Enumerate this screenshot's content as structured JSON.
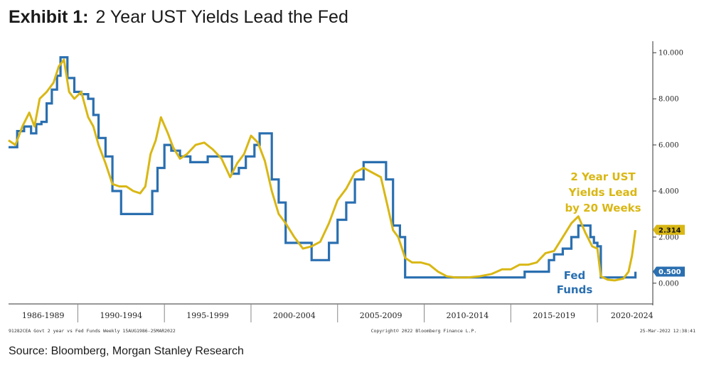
{
  "header": {
    "exhibit": "Exhibit 1:",
    "title": "2 Year UST Yields Lead the Fed"
  },
  "source": "Source: Bloomberg, Morgan Stanley Research",
  "colors": {
    "ust": "#d9b714",
    "fed": "#2a6fb0",
    "axis": "#333333"
  },
  "chart_data": {
    "type": "line",
    "ylim": [
      -0.9,
      10.5
    ],
    "xlim": [
      1986,
      2023.2
    ],
    "yticks": [
      0,
      2,
      4,
      6,
      8,
      10
    ],
    "ytick_labels": [
      "0.000",
      "2.000",
      "4.000",
      "6.000",
      "8.000",
      "10.000"
    ],
    "xtick_labels": [
      "1986-1989",
      "1990-1994",
      "1995-1999",
      "2000-2004",
      "2005-2009",
      "2010-2014",
      "2015-2019",
      "2020-2024"
    ],
    "xtick_label_x": [
      1988,
      1992.5,
      1997.5,
      2002.5,
      2007.5,
      2012.5,
      2017.5,
      2022
    ],
    "xtick_dividers": [
      1990,
      1995,
      2000,
      2005,
      2010,
      2015,
      2020
    ],
    "annotations": {
      "ust": [
        "2 Year UST",
        "Yields Lead",
        "by 20 Weeks"
      ],
      "fed": [
        "Fed",
        "Funds"
      ]
    },
    "last_values": {
      "ust": "2.314",
      "fed": "0.500"
    },
    "footer_left": "91282CEA Govt 2 year vs Fed Funds  Weekly 15AUG1986-25MAR2022",
    "footer_center": "Copyright© 2022 Bloomberg Finance L.P.",
    "footer_right": "25-Mar-2022 12:38:41",
    "series": [
      {
        "name": "2 Year UST",
        "x": [
          1986.0,
          1986.4,
          1986.8,
          1987.2,
          1987.5,
          1987.8,
          1988.2,
          1988.6,
          1988.9,
          1989.2,
          1989.5,
          1989.8,
          1990.2,
          1990.6,
          1990.9,
          1991.2,
          1991.6,
          1992.0,
          1992.4,
          1992.8,
          1993.2,
          1993.6,
          1993.9,
          1994.2,
          1994.5,
          1994.8,
          1995.2,
          1995.5,
          1995.9,
          1996.3,
          1996.8,
          1997.3,
          1997.8,
          1998.3,
          1998.8,
          1999.2,
          1999.6,
          2000.0,
          2000.4,
          2000.8,
          2001.2,
          2001.6,
          2002.0,
          2002.5,
          2003.0,
          2003.5,
          2004.0,
          2004.5,
          2005.0,
          2005.5,
          2006.0,
          2006.5,
          2007.0,
          2007.5,
          2007.9,
          2008.2,
          2008.5,
          2008.9,
          2009.3,
          2009.8,
          2010.3,
          2010.8,
          2011.3,
          2011.8,
          2012.5,
          2013.2,
          2013.9,
          2014.5,
          2015.0,
          2015.5,
          2016.0,
          2016.5,
          2017.0,
          2017.5,
          2018.0,
          2018.5,
          2018.9,
          2019.3,
          2019.7,
          2020.0,
          2020.2,
          2020.6,
          2021.0,
          2021.5,
          2021.8,
          2022.0,
          2022.2
        ],
        "y": [
          6.2,
          6.0,
          6.8,
          7.4,
          6.8,
          8.0,
          8.3,
          8.7,
          9.4,
          9.7,
          8.3,
          8.0,
          8.3,
          7.2,
          6.8,
          6.0,
          5.2,
          4.3,
          4.2,
          4.2,
          4.0,
          3.9,
          4.2,
          5.6,
          6.2,
          7.2,
          6.5,
          5.9,
          5.4,
          5.6,
          6.0,
          6.1,
          5.8,
          5.4,
          4.6,
          5.2,
          5.6,
          6.4,
          6.1,
          5.3,
          4.0,
          3.0,
          2.6,
          2.0,
          1.5,
          1.6,
          1.8,
          2.6,
          3.6,
          4.1,
          4.8,
          5.0,
          4.8,
          4.6,
          3.3,
          2.3,
          2.0,
          1.1,
          0.9,
          0.9,
          0.8,
          0.5,
          0.3,
          0.25,
          0.25,
          0.3,
          0.4,
          0.6,
          0.6,
          0.8,
          0.8,
          0.9,
          1.3,
          1.4,
          2.0,
          2.6,
          2.9,
          2.2,
          1.6,
          1.5,
          0.3,
          0.15,
          0.12,
          0.2,
          0.5,
          1.2,
          2.3
        ]
      },
      {
        "name": "Fed Funds",
        "x": [
          1986.0,
          1986.5,
          1986.9,
          1987.3,
          1987.6,
          1987.9,
          1988.2,
          1988.5,
          1988.8,
          1989.0,
          1989.4,
          1989.8,
          1990.2,
          1990.6,
          1990.9,
          1991.2,
          1991.6,
          1992.0,
          1992.5,
          1993.5,
          1994.0,
          1994.3,
          1994.6,
          1995.0,
          1995.4,
          1995.9,
          1996.5,
          1997.5,
          1998.5,
          1998.9,
          1999.3,
          1999.7,
          2000.2,
          2000.5,
          2000.8,
          2001.2,
          2001.6,
          2002.0,
          2002.8,
          2003.5,
          2004.0,
          2004.5,
          2005.0,
          2005.5,
          2006.0,
          2006.5,
          2007.0,
          2007.5,
          2007.8,
          2008.2,
          2008.6,
          2008.9,
          2009.5,
          2010.5,
          2012.5,
          2014.5,
          2015.8,
          2016.5,
          2017.2,
          2017.5,
          2018.0,
          2018.5,
          2018.9,
          2019.4,
          2019.6,
          2019.8,
          2020.0,
          2020.2,
          2021.0,
          2022.0,
          2022.2
        ],
        "y": [
          5.9,
          6.6,
          6.8,
          6.5,
          6.9,
          7.0,
          7.8,
          8.4,
          9.0,
          9.8,
          8.9,
          8.3,
          8.2,
          8.0,
          7.3,
          6.3,
          5.5,
          4.0,
          3.0,
          3.0,
          3.0,
          4.0,
          5.0,
          6.0,
          5.75,
          5.5,
          5.25,
          5.5,
          5.5,
          4.75,
          5.0,
          5.5,
          6.0,
          6.5,
          6.5,
          4.5,
          3.5,
          1.75,
          1.75,
          1.0,
          1.0,
          1.75,
          2.75,
          3.5,
          4.5,
          5.25,
          5.25,
          5.25,
          4.5,
          2.5,
          2.0,
          0.25,
          0.25,
          0.25,
          0.25,
          0.25,
          0.5,
          0.5,
          1.0,
          1.25,
          1.5,
          2.0,
          2.5,
          2.5,
          2.0,
          1.75,
          1.6,
          0.25,
          0.25,
          0.25,
          0.5
        ]
      }
    ]
  }
}
